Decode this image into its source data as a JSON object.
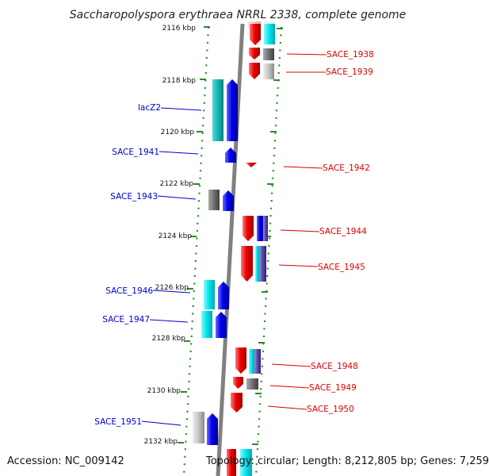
{
  "title": "Saccharopolyspora erythraea NRRL 2338, complete genome",
  "footer": {
    "accession": "Accession: NC_009142",
    "topology": "Topology: circular; Length: 8,212,805 bp; Genes: 7,259"
  },
  "kbp_labels": [
    "2116 kbp",
    "2118 kbp",
    "2120 kbp",
    "2122 kbp",
    "2124 kbp",
    "2126 kbp",
    "2128 kbp",
    "2130 kbp",
    "2132 kbp"
  ],
  "genes_forward": [
    "lacZ2",
    "SACE_1941",
    "SACE_1943",
    "SACE_1946",
    "SACE_1947",
    "SACE_1951"
  ],
  "genes_reverse": [
    "SACE_1938",
    "SACE_1939",
    "SACE_1942",
    "SACE_1944",
    "SACE_1945",
    "SACE_1948",
    "SACE_1949",
    "SACE_1950"
  ],
  "colors": {
    "forward_gene": "#0000ee",
    "forward_label": "#0000cc",
    "reverse_gene": "#ee0000",
    "reverse_label": "#dd0000",
    "cds_feature": "#00e0e8",
    "misc_feature": "#777777",
    "track_dots": "#2a8a2a",
    "backbone": "#888888"
  }
}
